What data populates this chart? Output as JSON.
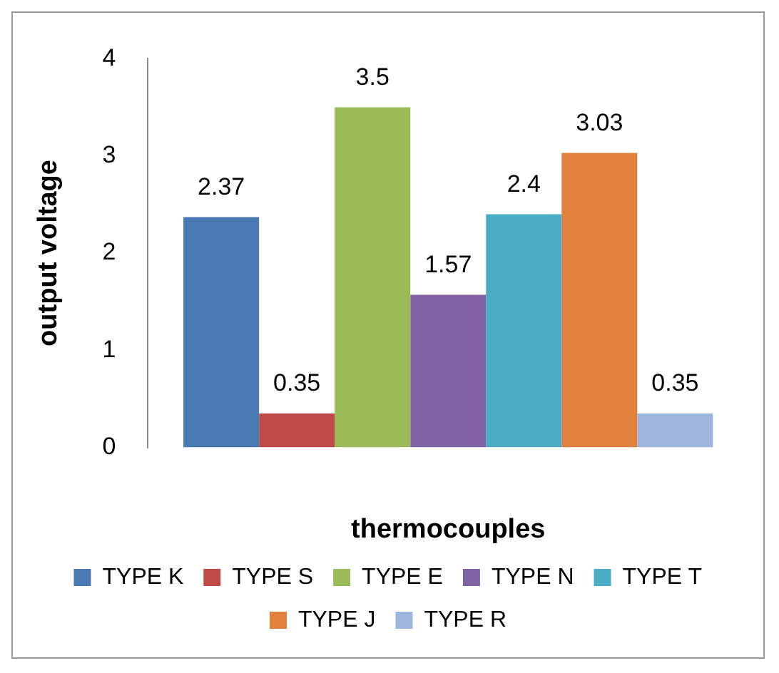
{
  "chart_data": {
    "type": "bar",
    "xlabel": "thermocouples",
    "ylabel": "output voltage",
    "categories": [
      null
    ],
    "series": [
      {
        "name": "TYPE K",
        "color": "#4a7ab4",
        "values": [
          2.37
        ]
      },
      {
        "name": "TYPE S",
        "color": "#be4b48",
        "values": [
          0.35
        ]
      },
      {
        "name": "TYPE E",
        "color": "#9bbb59",
        "values": [
          3.5
        ]
      },
      {
        "name": "TYPE N",
        "color": "#7f63a2",
        "values": [
          1.57
        ]
      },
      {
        "name": "TYPE T",
        "color": "#4bacc6",
        "values": [
          2.4
        ]
      },
      {
        "name": "TYPE J",
        "color": "#e0823d",
        "values": [
          3.03
        ]
      },
      {
        "name": "TYPE R",
        "color": "#9fb6dc",
        "values": [
          0.35
        ]
      }
    ],
    "ylim": [
      0,
      4
    ],
    "yticks": [
      0,
      1,
      2,
      3,
      4
    ],
    "grid": false,
    "legend": "bottom",
    "data_labels": true
  }
}
